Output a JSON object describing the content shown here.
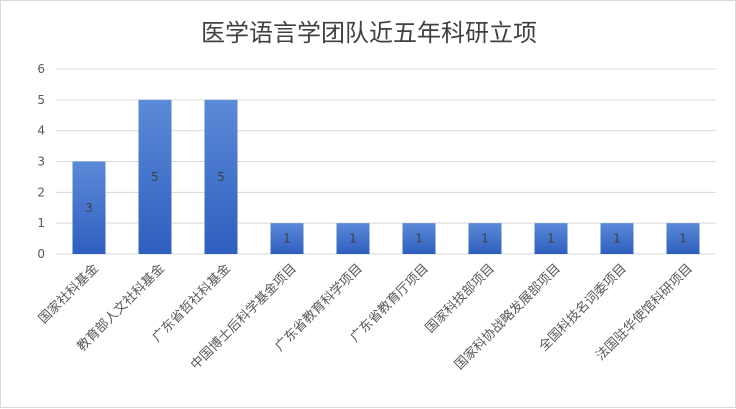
{
  "chart_data": {
    "type": "bar",
    "title": "医学语言学团队近五年科研立项",
    "categories": [
      "国家社科基金",
      "教育部人文社科基金",
      "广东省哲社科基金",
      "中国博士后科学基金项目",
      "广东省教育科学项目",
      "广东省教育厅项目",
      "国家科技部项目",
      "国家科协战略发展部项目",
      "全国科技名词委项目",
      "法国驻华使馆科研项目"
    ],
    "values": [
      3,
      5,
      5,
      1,
      1,
      1,
      1,
      1,
      1,
      1
    ],
    "data_labels": [
      "3",
      "5",
      "5",
      "1",
      "1",
      "1",
      "1",
      "1",
      "1",
      "1"
    ],
    "ylim": [
      0,
      6
    ],
    "yticks": [
      "0",
      "1",
      "2",
      "3",
      "4",
      "5",
      "6"
    ],
    "grid": true,
    "legend": "none",
    "bar_color_top": "#5b8ad8",
    "bar_color_bottom": "#2f5fbf",
    "grid_color": "#d9d9d9"
  }
}
